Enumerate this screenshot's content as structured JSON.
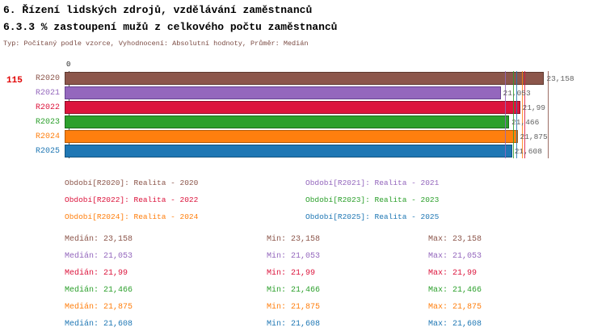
{
  "titles": {
    "line1": "6. Řízení lidských zdrojů, vzdělávání zaměstnanců",
    "line2": "6.3.3 % zastoupení mužů z celkového počtu zaměstnanců",
    "subtitle": "Typ: Počítaný podle vzorce, Vyhodnocení: Absolutní hodnoty, Průměr: Medián"
  },
  "indicator_number": "115",
  "chart_data": {
    "type": "bar",
    "orientation": "horizontal",
    "title": "6.3.3 % zastoupení mužů z celkového počtu zaměstnanců",
    "categories": [
      "R2020",
      "R2021",
      "R2022",
      "R2023",
      "R2024",
      "R2025"
    ],
    "values": [
      23.158,
      21.053,
      21.99,
      21.466,
      21.875,
      21.608
    ],
    "value_labels": [
      "23,158",
      "21,053",
      "21,99",
      "21,466",
      "21,875",
      "21,608"
    ],
    "axis": {
      "zero_label": "0",
      "xlim": [
        0,
        24
      ]
    },
    "grid": false,
    "legend_position": "bottom",
    "series_colors": [
      "#8c564b",
      "#9467bd",
      "#dc143c",
      "#2ca02c",
      "#ff7f0e",
      "#1f77b4"
    ],
    "series_border_colors": [
      "#5d382f",
      "#684593",
      "#8f0d27",
      "#1c6b1c",
      "#b45a07",
      "#14537e"
    ]
  },
  "legend": {
    "items": [
      {
        "label": "Období[R2020]: Realita - 2020",
        "color": "#8c564b"
      },
      {
        "label": "Období[R2021]: Realita - 2021",
        "color": "#9467bd"
      },
      {
        "label": "Období[R2022]: Realita - 2022",
        "color": "#dc143c"
      },
      {
        "label": "Období[R2023]: Realita - 2023",
        "color": "#2ca02c"
      },
      {
        "label": "Období[R2024]: Realita - 2024",
        "color": "#ff7f0e"
      },
      {
        "label": "Období[R2025]: Realita - 2025",
        "color": "#1f77b4"
      }
    ]
  },
  "stats": {
    "labels": {
      "median": "Medián",
      "min": "Min",
      "max": "Max"
    },
    "rows": [
      {
        "median": "23,158",
        "min": "23,158",
        "max": "23,158",
        "color": "#8c564b"
      },
      {
        "median": "21,053",
        "min": "21,053",
        "max": "21,053",
        "color": "#9467bd"
      },
      {
        "median": "21,99",
        "min": "21,99",
        "max": "21,99",
        "color": "#dc143c"
      },
      {
        "median": "21,466",
        "min": "21,466",
        "max": "21,466",
        "color": "#2ca02c"
      },
      {
        "median": "21,875",
        "min": "21,875",
        "max": "21,875",
        "color": "#ff7f0e"
      },
      {
        "median": "21,608",
        "min": "21,608",
        "max": "21,608",
        "color": "#1f77b4"
      }
    ]
  }
}
